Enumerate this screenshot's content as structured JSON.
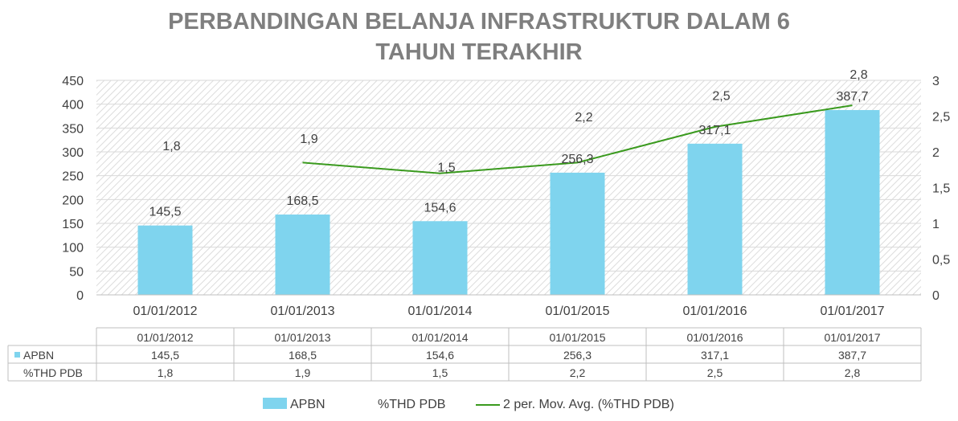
{
  "chart_data": {
    "type": "bar",
    "title_lines": [
      "PERBANDINGAN BELANJA INFRASTRUKTUR DALAM 6",
      "TAHUN TERAKHIR"
    ],
    "categories": [
      "01/01/2012",
      "01/01/2013",
      "01/01/2014",
      "01/01/2015",
      "01/01/2016",
      "01/01/2017"
    ],
    "series": [
      {
        "name": "APBN",
        "axis": "left",
        "kind": "bar",
        "values": [
          145.5,
          168.5,
          154.6,
          256.3,
          317.1,
          387.7
        ],
        "labels": [
          "145,5",
          "168,5",
          "154,6",
          "256,3",
          "317,1",
          "387,7"
        ],
        "color": "#7fd4ee"
      },
      {
        "name": "%THD PDB",
        "axis": "right",
        "kind": "line-hidden",
        "values": [
          1.8,
          1.9,
          1.5,
          2.2,
          2.5,
          2.8
        ],
        "labels": [
          "1,8",
          "1,9",
          "1,5",
          "2,2",
          "2,5",
          "2,8"
        ]
      },
      {
        "name": "2 per. Mov. Avg. (%THD PDB)",
        "axis": "right",
        "kind": "trendline",
        "values": [
          null,
          1.85,
          1.7,
          1.85,
          2.35,
          2.65
        ],
        "color": "#3a9a1e"
      }
    ],
    "y_left": {
      "min": 0,
      "max": 450,
      "step": 50,
      "ticks": [
        "0",
        "50",
        "100",
        "150",
        "200",
        "250",
        "300",
        "350",
        "400",
        "450"
      ]
    },
    "y_right": {
      "min": 0,
      "max": 3,
      "step": 0.5,
      "ticks": [
        "0",
        "0,5",
        "1",
        "1,5",
        "2",
        "2,5",
        "3"
      ]
    },
    "table": {
      "rows": [
        {
          "name": "APBN",
          "cells": [
            "145,5",
            "168,5",
            "154,6",
            "256,3",
            "317,1",
            "387,7"
          ]
        },
        {
          "name": "%THD PDB",
          "cells": [
            "1,8",
            "1,9",
            "1,5",
            "2,2",
            "2,5",
            "2,8"
          ]
        }
      ]
    },
    "legend": [
      "APBN",
      "%THD PDB",
      "2 per. Mov. Avg. (%THD PDB)"
    ],
    "grid": true,
    "legend_position": "bottom"
  }
}
